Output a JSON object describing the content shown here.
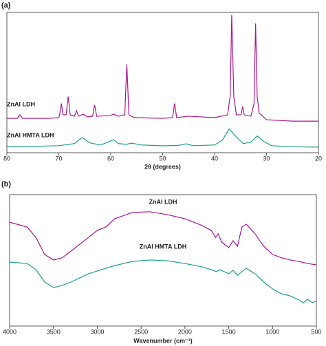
{
  "chart_data": [
    {
      "type": "line",
      "label": "(a)",
      "x_label": "2θ (degrees)",
      "xlim": [
        80,
        20
      ],
      "xticks": [
        80,
        70,
        60,
        50,
        40,
        30,
        20
      ],
      "ylim": [
        0,
        100
      ],
      "series": [
        {
          "name": "ZnAl LDH",
          "color": "#a8158f",
          "x": [
            80,
            78,
            77.5,
            77,
            72,
            70,
            69.8,
            69.5,
            69.2,
            68.6,
            68.2,
            67.8,
            67,
            66.6,
            66.2,
            65.3,
            64.5,
            63.5,
            63.1,
            62.7,
            60,
            59.5,
            58.5,
            57.3,
            56.9,
            56.5,
            55.5,
            50,
            48.1,
            47.7,
            47.3,
            45,
            40,
            37.5,
            37,
            36.7,
            36.3,
            35.8,
            34.9,
            34.6,
            34.3,
            33,
            32.4,
            32.1,
            31.8,
            31.4,
            31,
            30,
            25,
            20
          ],
          "values": [
            24.5,
            24.5,
            27,
            24.5,
            24.5,
            25,
            28,
            35,
            27,
            27,
            40,
            27,
            26,
            30,
            26,
            27.5,
            25.5,
            26,
            34,
            26,
            26.5,
            27.5,
            26,
            27,
            63,
            27,
            25,
            24.5,
            25,
            35,
            25,
            26,
            25,
            27,
            40,
            98,
            40,
            27,
            27,
            33,
            27,
            26,
            35,
            92,
            40,
            28,
            27,
            23.5,
            22.5,
            22.5
          ]
        },
        {
          "name": "ZnAl HMTA LDH",
          "color": "#1aa08a",
          "x": [
            80,
            75,
            70,
            67,
            65.5,
            64,
            62,
            60.5,
            59.5,
            58.5,
            57,
            56,
            54,
            50,
            47,
            45.5,
            44,
            40,
            38.5,
            37.2,
            36,
            34.5,
            33,
            31.8,
            30.5,
            29,
            25,
            20
          ],
          "values": [
            4.4,
            4.5,
            5,
            6.5,
            10.8,
            7,
            5.5,
            7.5,
            9.3,
            6.5,
            6,
            6.8,
            5.5,
            4.9,
            5.2,
            6.3,
            5,
            5.5,
            9,
            17,
            12,
            6.5,
            7.5,
            12,
            8,
            5,
            4.2,
            4
          ]
        }
      ]
    },
    {
      "type": "line",
      "label": "(b)",
      "x_label": "Wavenumber (cm⁻¹)",
      "xlim": [
        4000,
        500
      ],
      "xticks": [
        4000,
        3500,
        3000,
        2500,
        2000,
        1500,
        1000,
        500
      ],
      "ylim": [
        0,
        100
      ],
      "series": [
        {
          "name": "ZnAl LDH",
          "color": "#a8158f",
          "x": [
            4000,
            3800,
            3700,
            3600,
            3500,
            3400,
            3300,
            3100,
            3000,
            2900,
            2800,
            2600,
            2400,
            2200,
            2000,
            1800,
            1700,
            1650,
            1620,
            1580,
            1500,
            1450,
            1400,
            1350,
            1300,
            1200,
            1100,
            1000,
            900,
            800,
            700,
            600,
            500
          ],
          "values": [
            79,
            75.4,
            67.5,
            54.5,
            50.3,
            52,
            57,
            67.5,
            72.8,
            75.4,
            81.7,
            86.4,
            87,
            84.8,
            81.7,
            76.4,
            72.8,
            67.5,
            70.2,
            63.9,
            59.7,
            64.9,
            60.7,
            75.4,
            77.5,
            70.2,
            60.7,
            54.5,
            52,
            50.3,
            49.2,
            47.6,
            46.6
          ]
        },
        {
          "name": "ZnAl HMTA LDH",
          "color": "#1aa08a",
          "x": [
            4000,
            3800,
            3700,
            3600,
            3500,
            3400,
            3300,
            3100,
            2900,
            2800,
            2600,
            2400,
            2200,
            2000,
            1800,
            1700,
            1640,
            1600,
            1500,
            1450,
            1400,
            1300,
            1200,
            1100,
            1000,
            900,
            800,
            700,
            650,
            600,
            550,
            500
          ],
          "values": [
            48.7,
            47.6,
            42.9,
            33.5,
            29.3,
            30.9,
            33.5,
            39.8,
            44,
            46,
            49.2,
            50.3,
            49.7,
            47.6,
            45,
            42.9,
            41.4,
            42.9,
            39.8,
            42.4,
            38.7,
            44,
            39.8,
            33.5,
            28.3,
            24.6,
            23,
            19.9,
            17.8,
            20.4,
            17.8,
            18.8
          ]
        }
      ]
    }
  ]
}
